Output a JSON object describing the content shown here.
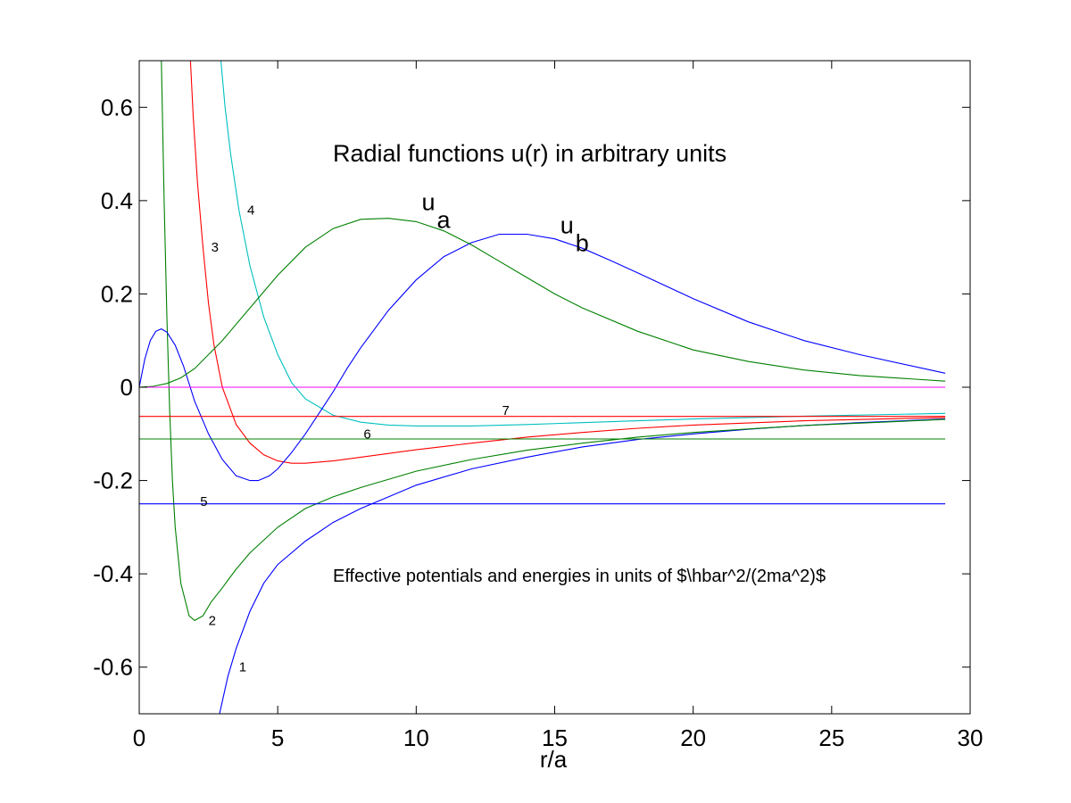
{
  "chart_data": {
    "type": "line",
    "title": "",
    "xlabel": "r/a",
    "ylabel": "",
    "xlim": [
      0,
      30
    ],
    "ylim": [
      -0.7,
      0.7
    ],
    "x_ticks": [
      0,
      5,
      10,
      15,
      20,
      25,
      30
    ],
    "x_tick_labels": [
      "0",
      "5",
      "10",
      "15",
      "20",
      "25",
      "30"
    ],
    "y_ticks": [
      -0.6,
      -0.4,
      -0.2,
      0,
      0.2,
      0.4,
      0.6
    ],
    "y_tick_labels": [
      "-0.6",
      "-0.4",
      "-0.2",
      "0",
      "0.2",
      "0.4",
      "0.6"
    ],
    "grid": false,
    "annotations": [
      {
        "text": "Radial functions u(r) in arbitrary units",
        "x": 7,
        "y": 0.5
      },
      {
        "text": "Effective potentials and energies in units of $\\hbar^2/(2ma^2)$",
        "x": 7,
        "y": -0.41
      }
    ],
    "curve_labels": [
      {
        "text": "1",
        "x": 3.6,
        "y": -0.6
      },
      {
        "text": "2",
        "x": 2.5,
        "y": -0.5
      },
      {
        "text": "3",
        "x": 2.6,
        "y": 0.3
      },
      {
        "text": "4",
        "x": 3.9,
        "y": 0.38
      },
      {
        "text": "5",
        "x": 2.2,
        "y": -0.245
      },
      {
        "text": "6",
        "x": 8.1,
        "y": -0.1
      },
      {
        "text": "7",
        "x": 13.1,
        "y": -0.05
      }
    ],
    "u_labels": [
      {
        "main": "u",
        "sub": "a",
        "x": 10.2,
        "y": 0.38
      },
      {
        "main": "u",
        "sub": "b",
        "x": 15.2,
        "y": 0.33
      }
    ],
    "series": [
      {
        "color": "#0000ff",
        "x": [
          2.9,
          3.2,
          3.5,
          4,
          4.5,
          5,
          6,
          7,
          8,
          9,
          10,
          12,
          14,
          16,
          18,
          20,
          22,
          24,
          26,
          29.1
        ],
        "y": [
          -0.7,
          -0.62,
          -0.56,
          -0.48,
          -0.42,
          -0.38,
          -0.33,
          -0.29,
          -0.26,
          -0.235,
          -0.21,
          -0.175,
          -0.15,
          -0.128,
          -0.112,
          -0.1,
          -0.09,
          -0.082,
          -0.076,
          -0.068
        ]
      },
      {
        "color": "#008000",
        "x": [
          0.8,
          0.9,
          1.0,
          1.1,
          1.2,
          1.3,
          1.5,
          1.8,
          2.0,
          2.3,
          2.6,
          3,
          3.5,
          4,
          5,
          6,
          7,
          8,
          10,
          12,
          14,
          16,
          18,
          20,
          24,
          29.1
        ],
        "y": [
          0.7,
          0.4,
          0.15,
          -0.05,
          -0.2,
          -0.3,
          -0.42,
          -0.49,
          -0.5,
          -0.49,
          -0.46,
          -0.43,
          -0.39,
          -0.355,
          -0.3,
          -0.26,
          -0.235,
          -0.215,
          -0.18,
          -0.155,
          -0.135,
          -0.12,
          -0.107,
          -0.097,
          -0.082,
          -0.069
        ]
      },
      {
        "color": "#ff0000",
        "x": [
          1.85,
          1.95,
          2.1,
          2.3,
          2.5,
          2.7,
          3,
          3.5,
          4,
          4.5,
          5,
          5.5,
          6,
          7,
          8,
          10,
          12,
          14,
          16,
          18,
          20,
          24,
          29.1
        ],
        "y": [
          0.7,
          0.58,
          0.44,
          0.3,
          0.18,
          0.09,
          0.0,
          -0.08,
          -0.12,
          -0.145,
          -0.158,
          -0.163,
          -0.163,
          -0.158,
          -0.15,
          -0.134,
          -0.12,
          -0.107,
          -0.097,
          -0.088,
          -0.081,
          -0.072,
          -0.065
        ]
      },
      {
        "color": "#00bfbf",
        "x": [
          2.95,
          3.1,
          3.3,
          3.6,
          4,
          4.5,
          5,
          5.5,
          6,
          7,
          8,
          9,
          10,
          12,
          14,
          16,
          18,
          20,
          24,
          29.1
        ],
        "y": [
          0.7,
          0.6,
          0.5,
          0.38,
          0.26,
          0.15,
          0.07,
          0.01,
          -0.025,
          -0.06,
          -0.075,
          -0.081,
          -0.083,
          -0.083,
          -0.08,
          -0.076,
          -0.072,
          -0.068,
          -0.062,
          -0.056
        ]
      },
      {
        "color": "#0000ff",
        "x": [
          0,
          0.2,
          0.4,
          0.6,
          0.8,
          1.0,
          1.3,
          1.6,
          2,
          2.5,
          3,
          3.5,
          4,
          4.3,
          4.7,
          5,
          5.5,
          6,
          6.5,
          7,
          7.5,
          8,
          9,
          10,
          11,
          12,
          13,
          14,
          15,
          16,
          17,
          18,
          20,
          22,
          24,
          26,
          29.1
        ],
        "y": [
          0,
          0.06,
          0.1,
          0.12,
          0.125,
          0.118,
          0.09,
          0.045,
          -0.03,
          -0.1,
          -0.155,
          -0.19,
          -0.2,
          -0.2,
          -0.19,
          -0.175,
          -0.14,
          -0.1,
          -0.055,
          -0.01,
          0.04,
          0.085,
          0.165,
          0.23,
          0.28,
          0.31,
          0.328,
          0.328,
          0.318,
          0.298,
          0.272,
          0.245,
          0.19,
          0.14,
          0.1,
          0.07,
          0.03
        ]
      },
      {
        "color": "#008000",
        "x": [
          0,
          0.5,
          1,
          1.5,
          2,
          3,
          4,
          5,
          6,
          7,
          8,
          9,
          10,
          11,
          12,
          13,
          14,
          15,
          16,
          18,
          20,
          22,
          24,
          26,
          29.1
        ],
        "y": [
          0,
          0.002,
          0.008,
          0.02,
          0.04,
          0.1,
          0.17,
          0.24,
          0.3,
          0.34,
          0.36,
          0.362,
          0.355,
          0.335,
          0.305,
          0.27,
          0.235,
          0.2,
          0.17,
          0.12,
          0.08,
          0.055,
          0.037,
          0.025,
          0.013
        ]
      },
      {
        "color": "#ff00ff",
        "x": [
          0,
          29.1
        ],
        "y": [
          0,
          0
        ]
      },
      {
        "color": "#ff0000",
        "x": [
          0,
          29.1
        ],
        "y": [
          -0.0625,
          -0.0625
        ]
      },
      {
        "color": "#008000",
        "x": [
          0,
          29.1
        ],
        "y": [
          -0.111,
          -0.111
        ]
      },
      {
        "color": "#0000ff",
        "x": [
          0,
          29.1
        ],
        "y": [
          -0.25,
          -0.25
        ]
      }
    ]
  }
}
